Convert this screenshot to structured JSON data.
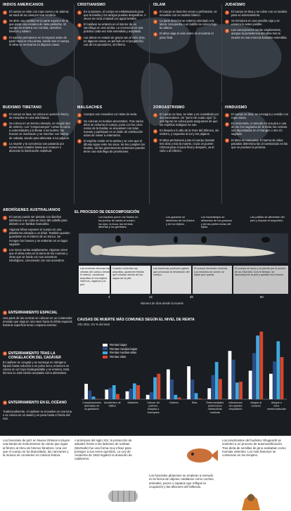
{
  "sections": {
    "americanos": {
      "title": "Indios americanos",
      "items": [
        {
          "n": "1",
          "text": "El cuerpo se viste con ropa nueva y se adorna; se saca de su casa por una ventana."
        },
        {
          "n": "2",
          "text": "Se abre una cavidad en la parte superior de la que parte una escalera de siete peldaños. El cuerpo se entierra con comida, utensilios básicos y tabaco."
        },
        {
          "n": "3",
          "text": "El espíritu permanece en el espacio antes de partir hacia la Vía Láctea, donde vive el cuerpo, el alma se reencarna en algunos casos."
        }
      ]
    },
    "cristianismo": {
      "title": "Cristianismo",
      "items": [
        {
          "n": "1",
          "text": "En ocasiones, el cuerpo es embalsamado para que la familia y los amigos puedan despedirse. A veces se rocía el ataúd con agua bendita."
        },
        {
          "n": "2",
          "text": "El cadáver se entierra en el interior de un sarcófago en una tumba. La cremación es una práctica cada vez más extendida y aceptada."
        },
        {
          "n": "3",
          "text": "Las almas en estado de gracia van al cielo (tras, en algunos casos, un período en el purgatorio). Las de los pecadores, al infierno."
        }
      ]
    },
    "islam": {
      "title": "Islam",
      "items": [
        {
          "n": "1",
          "text": "El cuerpo se lava tres veces y perfumado, se envuelve con un sudario blanco."
        },
        {
          "n": "2",
          "text": "La parte derecha se entierra orientado a la Meca. Una piedra o un ladrillo se coloca bajo la cabeza."
        },
        {
          "n": "3",
          "text": "El alma viaja al cielo antes de encontrar el juicio final."
        }
      ]
    },
    "judaismo": {
      "title": "Judaísmo",
      "items": [
        {
          "n": "1",
          "text": "El cuerpo se lava y se cubre con un sudario para su enterramiento."
        },
        {
          "n": "2",
          "text": "Se introduce en una sencilla caja y se entierra lo antes posible."
        },
        {
          "n": "3",
          "text": "Las concepciones varían ampliamente, aunque la persistencia del alma tras la muerte es una creencia bastante extendida."
        }
      ]
    },
    "tibetano": {
      "title": "Budismo tibetano",
      "items": [
        {
          "n": "1",
          "text": "El cuerpo se lava, se coloca en posición fetal y se envuelve en una tela blanca."
        },
        {
          "n": "2",
          "text": "Se coloca en un terreno elevado, en ningún tipo de entierro. Los \"rompecuerpos\" cortan la carne a extremidades y la llevan a los buitres; los huesos se machacan y se mezclan con harina de cebada, siendo para alimentar a los pájaros."
        },
        {
          "n": "3",
          "text": "La muerte y la conciencia van pasando por numerosos estados hasta que renacen o alcanzan la iluminación espiritual."
        }
      ]
    },
    "malgaches": {
      "title": "Malgaches",
      "items": [
        {
          "n": "1",
          "text": "Cuerpos son envueltos con telas de seda."
        },
        {
          "n": "2",
          "text": "Se colocan en tumbas ancestrales. Tras varios años se exhuma el cuerpo, junto con los otros restos de la familia; se envuelven con telas nuevas y participan en un baile de celebración antes de volver a enterrarlos."
        },
        {
          "n": "3",
          "text": "El espíritu reside en la tumba y se cree que el difunto sigue entre los vivos. Se les cumplen los rituales, así las generaciones anteriores pueden tener una vida llega de provisiones."
        }
      ]
    },
    "zoroastrismo": {
      "title": "Zoroastrismo",
      "items": [
        {
          "n": "1",
          "text": "El cuerpo se lava, se viste y es custodiado por dos sacerdotes. Un \"perro de cuatro ojos\" (o una figura) se coloca para asegurarse de que los espíritus malignos se van."
        },
        {
          "n": "2",
          "text": "Es llevado a lo alto de la Torre del Silencio, sin entierro, y expuesto al sol y los pájaros."
        },
        {
          "n": "3",
          "text": "El alma permanece junto al cuerpo durante tres días y tras la muerte, cruza un puente Chinvat para el juicio final y después, va al cielo o al infierno."
        }
      ]
    },
    "hinduismo": {
      "title": "Hinduismo",
      "items": [
        {
          "n": "1",
          "text": "El cuerpo se lava, se consagra y vestido con ropa nueva."
        },
        {
          "n": "2",
          "text": "Es incinerado, a menudo en una pira o una de los ríos sagrados de la India; las cenizas son depositadas en el Ganges u otro río sagrado."
        },
        {
          "n": "3",
          "text": "El alma se reencarna. El karma de vidas pasadas determina las circunstancias en las que se produce la próxima."
        }
      ]
    },
    "australianos": {
      "title": "Aborígenes australianos",
      "items": [
        {
          "n": "1",
          "text": "El cuerpo puede ser pintado con diseños totémicos o se corta un trozo del cabello para dárselo a un familiar masculino."
        },
        {
          "n": "2",
          "text": "Algunas tribus exponen el cuerpo en una plataforma elevada o un árbol. También pueden guardarse en el interior de un tronco. Se recogen los huesos y se entierran en un lugar sagrado."
        },
        {
          "n": "3",
          "text": "Los tonos varían ampliamente. Algunas creen que el alma entra en la tierra de los muertos y otras que se funde con sus ancestros mitológicos, conociendo con sus ancestros."
        }
      ]
    },
    "espacial": {
      "title": "Enterramiento espacial",
      "text": "Una parte de las cenizas se colocan en un contenedor enviado que viaja en una nave hacia la órbita espacial; hasta la superficie lunar o espacio exterior."
    },
    "cadaver": {
      "title": "Enterramiento tras la congelación del cadáver",
      "text": "El cadáver se congela y se sumerge en nitrógeno líquido hasta reducirlo a un polvo seco; entonces se coloca en un hoyo biodegradable y se entierra. Esta técnica no está siendo aceptada como alternativa."
    },
    "oceano": {
      "title": "Enterramiento en el océano",
      "text": "Tradicionalmente, el cadáver se envuelve en una lona o se coloca en un ataúd y se pesa hasta el fondo del mar."
    }
  },
  "decomposition": {
    "title": "El proceso de descomposición",
    "stages_top": [
      "Los líquidos ponen los fluidos en los puntos de salida al cuerpo: los ojos, la boca, las heridas abiertas y los genitales.",
      "Los gusanos se alimentan de los fluidos y de los tejidos.",
      "Los escarabajos se alimentan de los gusanos y de las partes duras del tejido.",
      "Las polillas se alimentan del pelo y limpian el esqueleto."
    ],
    "timeline_labels": [
      "Las enzimas devoran las células del cuerpo desde el interior, causando ampollas en los tejidos internos, órganos y la piel.",
      "Cuando revientan las ampollas, aparecen fluidos que rebotan dentro de los capas de la piel.",
      "Las bacterias producen gases que provocan la hinchazón del cuerpo.",
      "El cuerpo hinchado revienta. Los insectos se comen al tejido que queda.",
      "El cuerpo se seca y se pierde por la acción de su microbio. Con el tiempo, se descompone la piel y quedan los huesos."
    ],
    "ticks": [
      "4",
      "14",
      "28",
      "50"
    ],
    "axis_caption": "Número de días desde la muerte"
  },
  "chart_data": {
    "type": "bar",
    "title": "Causas de muerte más comunes según el nivel de renta",
    "subtitle": "Año 2011. En % del total",
    "categories": [
      "Complicaciones derivadas de la gestación",
      "Accidentes de tráfico",
      "Diabetes",
      "Cáncer de pulmón, tráquea o bronquios",
      "Diarrea",
      "Sida",
      "Enfermedades pulmonares obstructivas crónicas",
      "Infecciones del aparato respiratorio",
      "Ataque al corazón",
      "Ataque o ictus cerebrovascular"
    ],
    "series": [
      {
        "name": "Rentas bajas",
        "color": "#ffffff",
        "values": [
          3.5,
          2.2,
          1.8,
          1.0,
          6.8,
          7.5,
          2.5,
          11.0,
          6.5,
          5.8
        ]
      },
      {
        "name": "Rentas medias-bajas",
        "color": "#2a4e8a",
        "values": [
          2.0,
          2.6,
          2.4,
          1.6,
          4.5,
          4.5,
          5.5,
          9.0,
          10.5,
          8.6
        ]
      },
      {
        "name": "Rentas medias-altas",
        "color": "#3fa9e0",
        "values": [
          0.6,
          3.2,
          3.6,
          5.0,
          1.0,
          1.4,
          8.5,
          3.8,
          14.5,
          13.2
        ]
      },
      {
        "name": "Rentas altas",
        "color": "#d9452a",
        "values": [
          0.1,
          1.2,
          3.2,
          5.8,
          0.4,
          0.2,
          4.6,
          4.0,
          15.4,
          9.6
        ]
      }
    ],
    "ylim": [
      0,
      16
    ],
    "legend": "top-left"
  },
  "bottom": [
    "Los funerales de jazz en Nueva Orleans incluyen una banda de instrumentos de viento que sigue al féretro al ritmo de himnos fúnebres. Una vez que el cuerpo se ha depositado, las canciones y la música se convierten en música festiva.",
    "A principios del siglo XIX, la protección de ataúdes frente a los ladrones de tumbas (Mortsafe) fue una forma muy eficaz para proteger a sus seres queridos. La Ley de Anatomía de 1832 legalizó la donación de cadáveres.",
    "Los funerales ghaneses se emplean a menudo en la forma de objetos cotidianos como coches, animales, peces o zapatos que reflejan la ocupación y las aficiones del fallecido.",
    "Los practicantes del budismo Shugendō se someten a un proceso de automomificación. Tras dieta de semillas de pino acababan como momias vivientes. Los más famosos se conservan en los templos."
  ]
}
